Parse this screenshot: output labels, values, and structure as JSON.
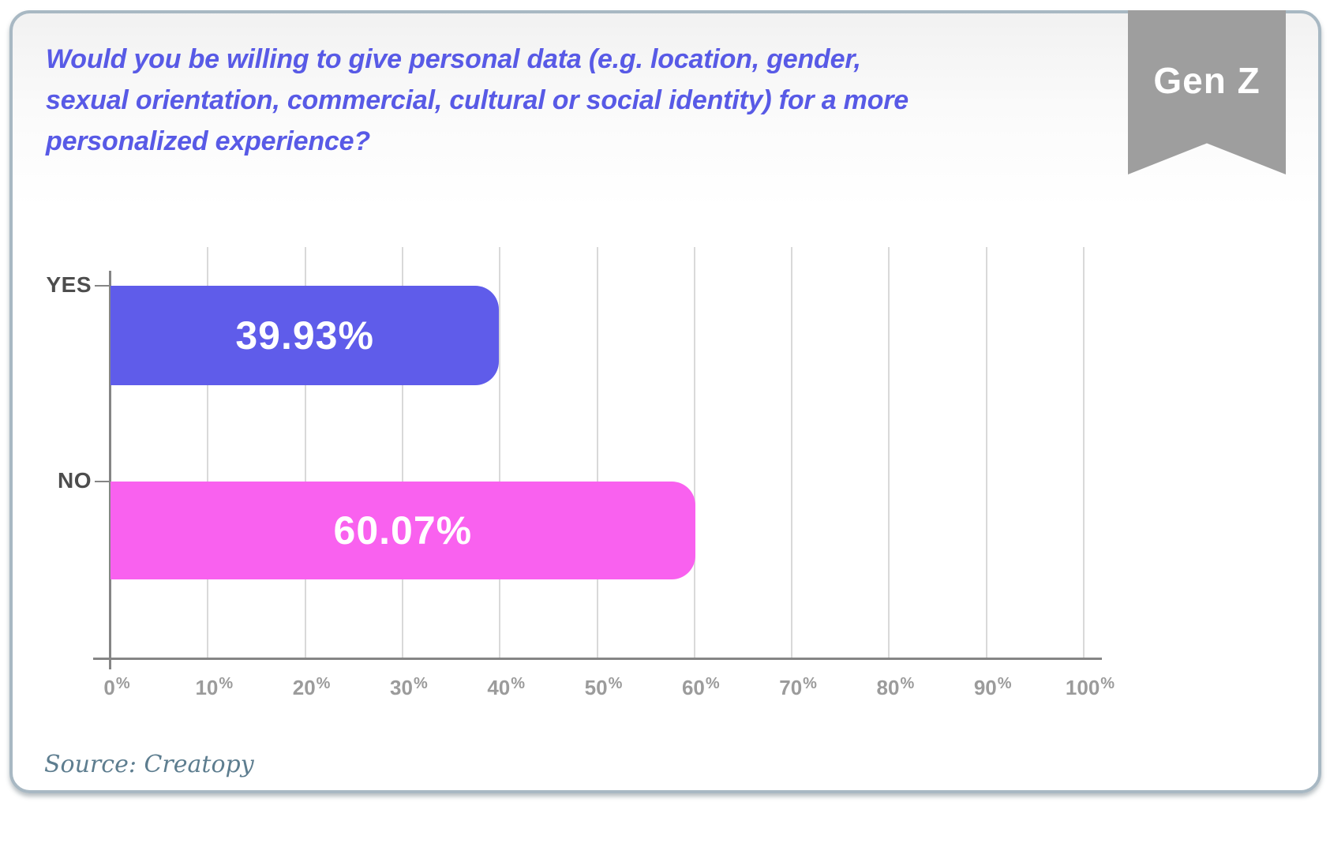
{
  "title": {
    "lines": [
      "Would you be willing to give personal data (e.g. location, gender,",
      "sexual orientation, commercial, cultural or social identity) for a more",
      "personalized experience?"
    ]
  },
  "badge": {
    "label": "Gen Z"
  },
  "source": {
    "text": "Source: Creatopy"
  },
  "colors": {
    "title_text": "#585ae6",
    "ribbon_bg": "#9e9e9e",
    "ribbon_text": "#ffffff",
    "axis_line": "#858585",
    "grid_line": "#d9d9d9",
    "tick_text": "#9b9b9b",
    "category_text": "#4d4d4d",
    "bar_value_text": "#ffffff",
    "source_text": "#5d7d8f",
    "card_border": "#a8b8c3",
    "card_bg_top": "#f1f1f1",
    "card_bg": "#ffffff"
  },
  "chart_data": {
    "type": "bar",
    "orientation": "horizontal",
    "title": "Would you be willing to give personal data (e.g. location, gender, sexual orientation, commercial, cultural or social identity) for a more personalized experience?",
    "categories": [
      "YES",
      "NO"
    ],
    "values": [
      39.93,
      60.07
    ],
    "value_labels": [
      "39.93%",
      "60.07%"
    ],
    "bar_colors": [
      "#5f5cea",
      "#f961ef"
    ],
    "xlabel": "",
    "ylabel": "",
    "xlim": [
      0,
      100
    ],
    "x_ticks": [
      "0%",
      "10%",
      "20%",
      "30%",
      "40%",
      "50%",
      "60%",
      "70%",
      "80%",
      "90%",
      "100%"
    ],
    "grid": true,
    "legend": false,
    "audience_badge": "Gen Z",
    "source": "Creatopy"
  }
}
